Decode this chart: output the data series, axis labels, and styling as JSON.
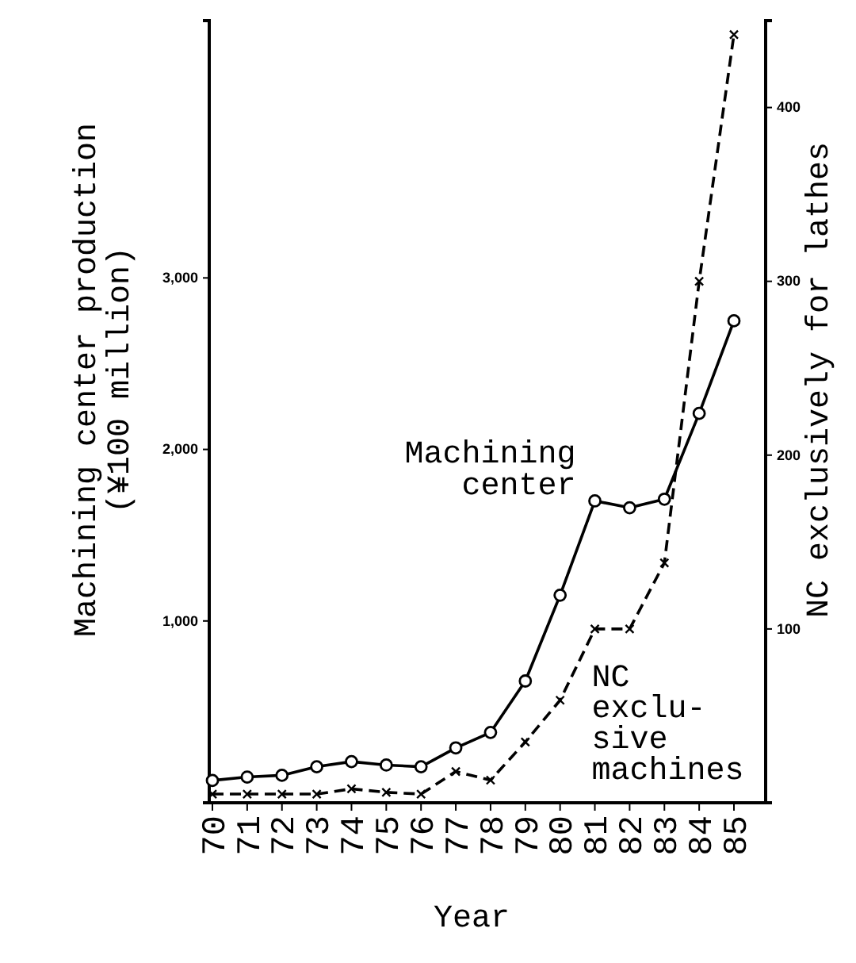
{
  "chart_data": {
    "type": "line",
    "xlabel": "Year",
    "ylabel": "Machining center production\n(¥100 million)",
    "y2label": "NC exclusively for lathes",
    "categories": [
      "70",
      "71",
      "72",
      "73",
      "74",
      "75",
      "76",
      "77",
      "78",
      "79",
      "80",
      "81",
      "82",
      "83",
      "84",
      "85"
    ],
    "ylim": [
      -60,
      4500
    ],
    "yticks": [
      {
        "value": 1000,
        "label": "1,000"
      },
      {
        "value": 2000,
        "label": "2,000"
      },
      {
        "value": 3000,
        "label": "3,000"
      }
    ],
    "y2lim": [
      0,
      450
    ],
    "y2ticks": [
      100,
      200,
      300,
      400
    ],
    "grid": false,
    "series": [
      {
        "name": "Machining\ncenter",
        "color": "#000000",
        "marker": "circle",
        "line_style": "solid",
        "values": [
          70,
          90,
          100,
          150,
          180,
          160,
          150,
          260,
          350,
          650,
          1150,
          1700,
          1660,
          1710,
          2210,
          2750
        ]
      },
      {
        "name": "NC\nexclu-\nsive\nmachines",
        "color": "#000000",
        "marker": "cross",
        "line_style": "dashed",
        "axis": "y2",
        "values": [
          5,
          5,
          5,
          5,
          8,
          6,
          5,
          18,
          13,
          35,
          59,
          100,
          100,
          138,
          300,
          442
        ]
      }
    ]
  }
}
